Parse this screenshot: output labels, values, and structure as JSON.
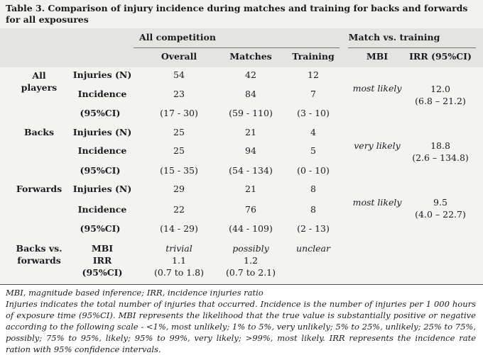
{
  "caption": "Table 3. Comparison of injury incidence during matches and training for backs and forwards for all exposures",
  "group_headers": {
    "all_competition": "All competition",
    "match_vs_training": "Match vs. training"
  },
  "columns": {
    "overall": "Overall",
    "matches": "Matches",
    "training": "Training",
    "mbi": "MBI",
    "irr": "IRR (95%CI)"
  },
  "groups": {
    "all": {
      "label_line1": "All",
      "label_line2": "players",
      "rows": [
        {
          "label": "Injuries (N)",
          "overall": "54",
          "matches": "42",
          "training": "12"
        },
        {
          "label": "Incidence",
          "overall": "23",
          "matches": "84",
          "training": "7"
        },
        {
          "label": "(95%CI)",
          "overall": "(17 - 30)",
          "matches": "(59 - 110)",
          "training": "(3 - 10)"
        }
      ],
      "mbi": "most likely",
      "irr": "12.0",
      "irr_ci": "(6.8 – 21.2)"
    },
    "backs": {
      "label_line1": "Backs",
      "rows": [
        {
          "label": "Injuries (N)",
          "overall": "25",
          "matches": "21",
          "training": "4"
        },
        {
          "label": "Incidence",
          "overall": "25",
          "matches": "94",
          "training": "5"
        },
        {
          "label": "(95%CI)",
          "overall": "(15 - 35)",
          "matches": "(54 - 134)",
          "training": "(0 - 10)"
        }
      ],
      "mbi": "very likely",
      "irr": "18.8",
      "irr_ci": "(2.6 – 134.8)"
    },
    "forwards": {
      "label_line1": "Forwards",
      "rows": [
        {
          "label": "Injuries (N)",
          "overall": "29",
          "matches": "21",
          "training": "8"
        },
        {
          "label": "Incidence",
          "overall": "22",
          "matches": "76",
          "training": "8"
        },
        {
          "label": "(95%CI)",
          "overall": "(14 - 29)",
          "matches": "(44 - 109)",
          "training": "(2 - 13)"
        }
      ],
      "mbi": "most likely",
      "irr": "9.5",
      "irr_ci": "(4.0 – 22.7)"
    },
    "comparison": {
      "label_line1": "Backs vs.",
      "label_line2": "forwards",
      "stat_labels": [
        "MBI",
        "IRR",
        "(95%CI)"
      ],
      "overall": {
        "mbi": "trivial",
        "irr": "1.1",
        "ci": "(0.7 to 1.8)"
      },
      "matches": {
        "mbi": "possibly",
        "irr": "1.2",
        "ci": "(0.7 to 2.1)"
      },
      "training": {
        "mbi": "unclear"
      }
    }
  },
  "footnotes": {
    "line1": "MBI, magnitude based inference; IRR, incidence injuries ratio",
    "line2": "Injuries indicates the total number of injuries that occurred. Incidence is the number of injuries per 1 000 hours of exposure time (95%CI). MBI represents the likelihood that the true value is substantially positive or negative according to the following scale - <1%, most unlikely; 1% to 5%, very unlikely; 5% to 25%, unlikely; 25% to 75%, possibly; 75% to 95%, likely; 95% to 99%, very likely; >99%, most likely. IRR represents the incidence rate ration with 95% confidence intervals."
  }
}
